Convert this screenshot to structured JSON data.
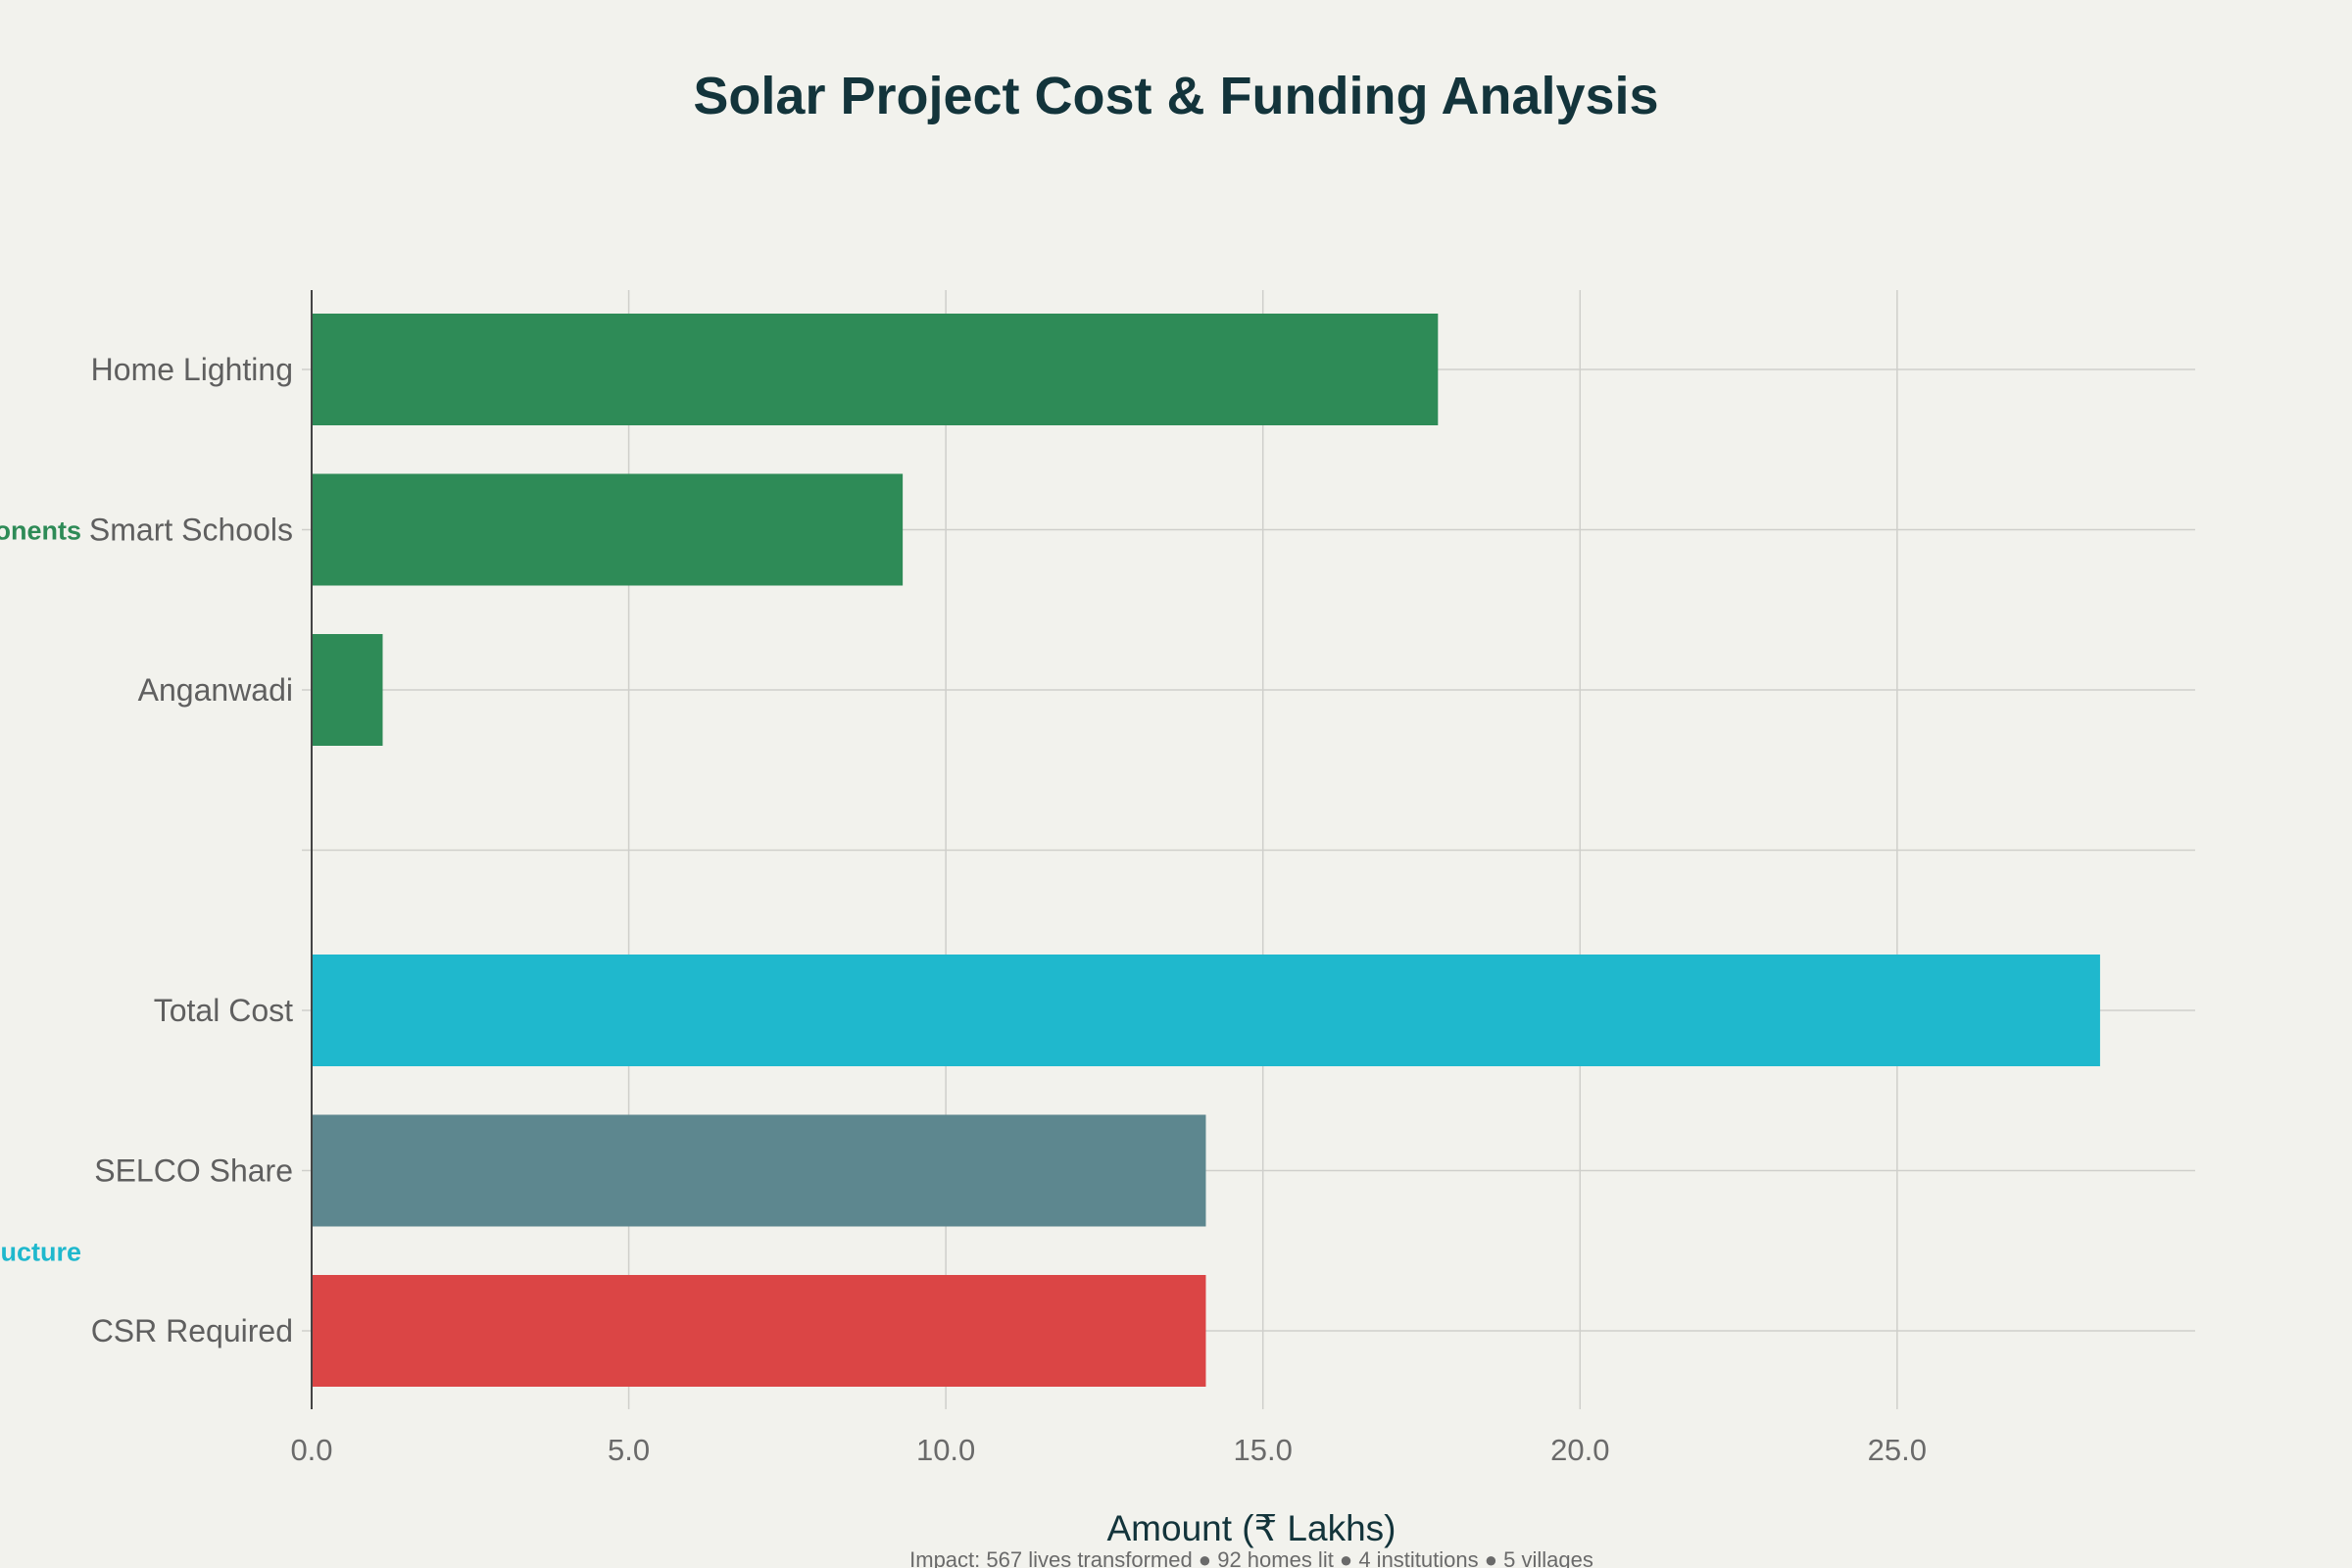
{
  "chart_data": {
    "type": "bar",
    "orientation": "horizontal",
    "title": "Solar Project Cost & Funding Analysis",
    "xlabel": "Amount (₹ Lakhs)",
    "ylabel": "",
    "xlim": [
      0,
      29.7
    ],
    "xticks": [
      "0.0",
      "5.0",
      "10.0",
      "15.0",
      "20.0",
      "25.0"
    ],
    "grid": true,
    "groups": [
      {
        "label": "Components",
        "visible_label": "onents",
        "color": "#2e8b57",
        "categories": [
          "Home Lighting",
          "Smart Schools",
          "Anganwadi"
        ],
        "values": [
          17.76,
          9.32,
          1.12
        ],
        "colors": [
          "#2e8b57",
          "#2e8b57",
          "#2e8b57"
        ]
      },
      {
        "label": "Funding Structure",
        "visible_label": "ucture",
        "color": "#1fb8cd",
        "categories": [
          "Total Cost",
          "SELCO Share",
          "CSR Required"
        ],
        "values": [
          28.2,
          14.1,
          14.1
        ],
        "colors": [
          "#1fb8cd",
          "#5d878f",
          "#db4545"
        ]
      }
    ],
    "footnote": "Impact: 567 lives transformed ● 92 homes lit ● 4 institutions ● 5 villages"
  }
}
